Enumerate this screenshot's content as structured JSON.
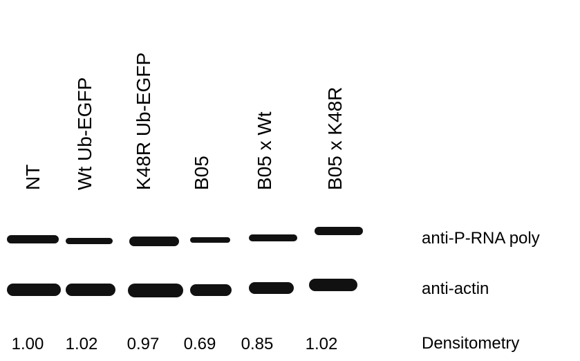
{
  "lanes": [
    "NT",
    "Wt Ub-EGFP",
    "K48R Ub-EGFP",
    "B05",
    "B05 x Wt",
    "B05 x K48R"
  ],
  "rows": [
    "anti-P-RNA poly",
    "anti-actin"
  ],
  "densitometry": {
    "label": "Densitometry",
    "values": [
      "1.00",
      "1.02",
      "0.97",
      "0.69",
      "0.85",
      "1.02"
    ]
  }
}
